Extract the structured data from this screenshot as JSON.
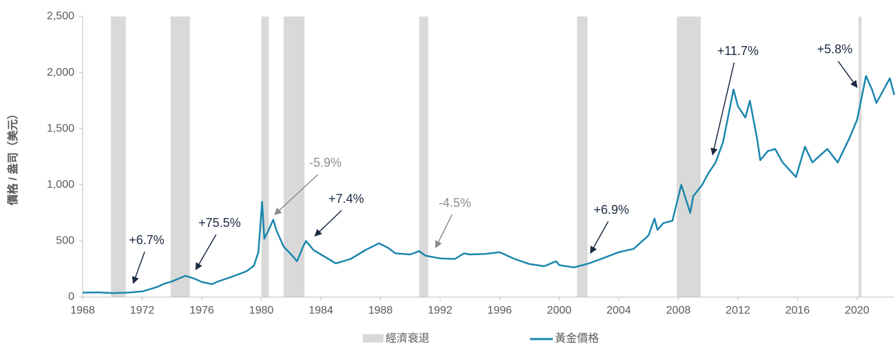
{
  "chart_data": {
    "type": "line",
    "y_label": "價格 / 盎司（美元）",
    "xlim": [
      1968,
      2022.5
    ],
    "xticks": [
      1968,
      1972,
      1976,
      1980,
      1984,
      1988,
      1992,
      1996,
      2000,
      2004,
      2008,
      2012,
      2016,
      2020
    ],
    "ylim": [
      0,
      2500
    ],
    "yticks": [
      0,
      500,
      {
        "value": 1000,
        "label": "1,000"
      },
      {
        "value": 1500,
        "label": "1,500"
      },
      {
        "value": 2000,
        "label": "2,000"
      },
      {
        "value": 2500,
        "label": "2,500"
      }
    ],
    "recession": {
      "name": "經濟衰退",
      "color": "#d9d9d9",
      "periods": [
        [
          1969.9,
          1970.9
        ],
        [
          1973.9,
          1975.2
        ],
        [
          1980.0,
          1980.5
        ],
        [
          1981.5,
          1982.9
        ],
        [
          1990.6,
          1991.2
        ],
        [
          2001.2,
          2001.9
        ],
        [
          2007.9,
          2009.5
        ],
        [
          2020.1,
          2020.3
        ]
      ]
    },
    "series": [
      {
        "name": "黃金價格",
        "color": "#1a86ad",
        "x": [
          1968,
          1969,
          1970,
          1971,
          1972,
          1973,
          1973.5,
          1974,
          1974.9,
          1975.5,
          1976,
          1976.7,
          1977,
          1978,
          1979,
          1979.5,
          1979.8,
          1980.05,
          1980.2,
          1980.5,
          1980.8,
          1981,
          1981.5,
          1982,
          1982.4,
          1982.8,
          1983,
          1983.5,
          1984,
          1985,
          1986,
          1987,
          1987.9,
          1988.5,
          1989,
          1990,
          1990.6,
          1991,
          1992,
          1993,
          1993.6,
          1994,
          1995,
          1996,
          1997,
          1998,
          1999,
          1999.8,
          2000,
          2001,
          2002,
          2003,
          2004,
          2005,
          2006,
          2006.4,
          2006.6,
          2007,
          2007.6,
          2008.1,
          2008.2,
          2008.8,
          2009,
          2009.6,
          2010,
          2010.5,
          2011,
          2011.7,
          2012,
          2012.5,
          2012.8,
          2013.3,
          2013.5,
          2014,
          2014.5,
          2015,
          2015.9,
          2016.5,
          2017,
          2018,
          2018.7,
          2019.5,
          2020,
          2020.6,
          2021,
          2021.3,
          2022.2,
          2022.5
        ],
        "values": [
          40,
          42,
          36,
          40,
          50,
          90,
          120,
          140,
          190,
          165,
          135,
          115,
          135,
          180,
          230,
          280,
          400,
          850,
          520,
          600,
          690,
          600,
          450,
          380,
          320,
          450,
          500,
          420,
          380,
          300,
          340,
          420,
          480,
          440,
          390,
          380,
          410,
          370,
          345,
          340,
          390,
          380,
          385,
          400,
          340,
          295,
          275,
          320,
          285,
          265,
          300,
          350,
          400,
          430,
          550,
          700,
          600,
          660,
          680,
          950,
          1000,
          750,
          900,
          1000,
          1100,
          1200,
          1380,
          1850,
          1700,
          1600,
          1750,
          1400,
          1220,
          1300,
          1320,
          1200,
          1070,
          1340,
          1200,
          1320,
          1200,
          1420,
          1580,
          1970,
          1850,
          1730,
          1950,
          1800
        ]
      }
    ],
    "annotations": [
      {
        "text": "+6.7%",
        "x": 1971.4,
        "y": 123,
        "tx": 1972.3,
        "ty": 502,
        "color": "#1b2a41"
      },
      {
        "text": "+75.5%",
        "x": 1975.6,
        "y": 245,
        "tx": 1977.2,
        "ty": 655,
        "color": "#1b2a41"
      },
      {
        "text": "-5.9%",
        "x": 1980.9,
        "y": 735,
        "tx": 1984.3,
        "ty": 1189,
        "color": "#8c8c8c"
      },
      {
        "text": "+7.4%",
        "x": 1983.6,
        "y": 545,
        "tx": 1985.7,
        "ty": 870,
        "color": "#1b2a41"
      },
      {
        "text": "-4.5%",
        "x": 1991.7,
        "y": 441,
        "tx": 1993.0,
        "ty": 833,
        "color": "#8c8c8c"
      },
      {
        "text": "+6.9%",
        "x": 2002.1,
        "y": 392,
        "tx": 2003.5,
        "ty": 772,
        "color": "#1b2a41"
      },
      {
        "text": "+11.7%",
        "x": 2010.3,
        "y": 1268,
        "tx": 2012.0,
        "ty": 2187,
        "color": "#1b2a41"
      },
      {
        "text": "+5.8%",
        "x": 2020.0,
        "y": 1869,
        "tx": 2018.5,
        "ty": 2200,
        "color": "#1b2a41"
      }
    ]
  }
}
